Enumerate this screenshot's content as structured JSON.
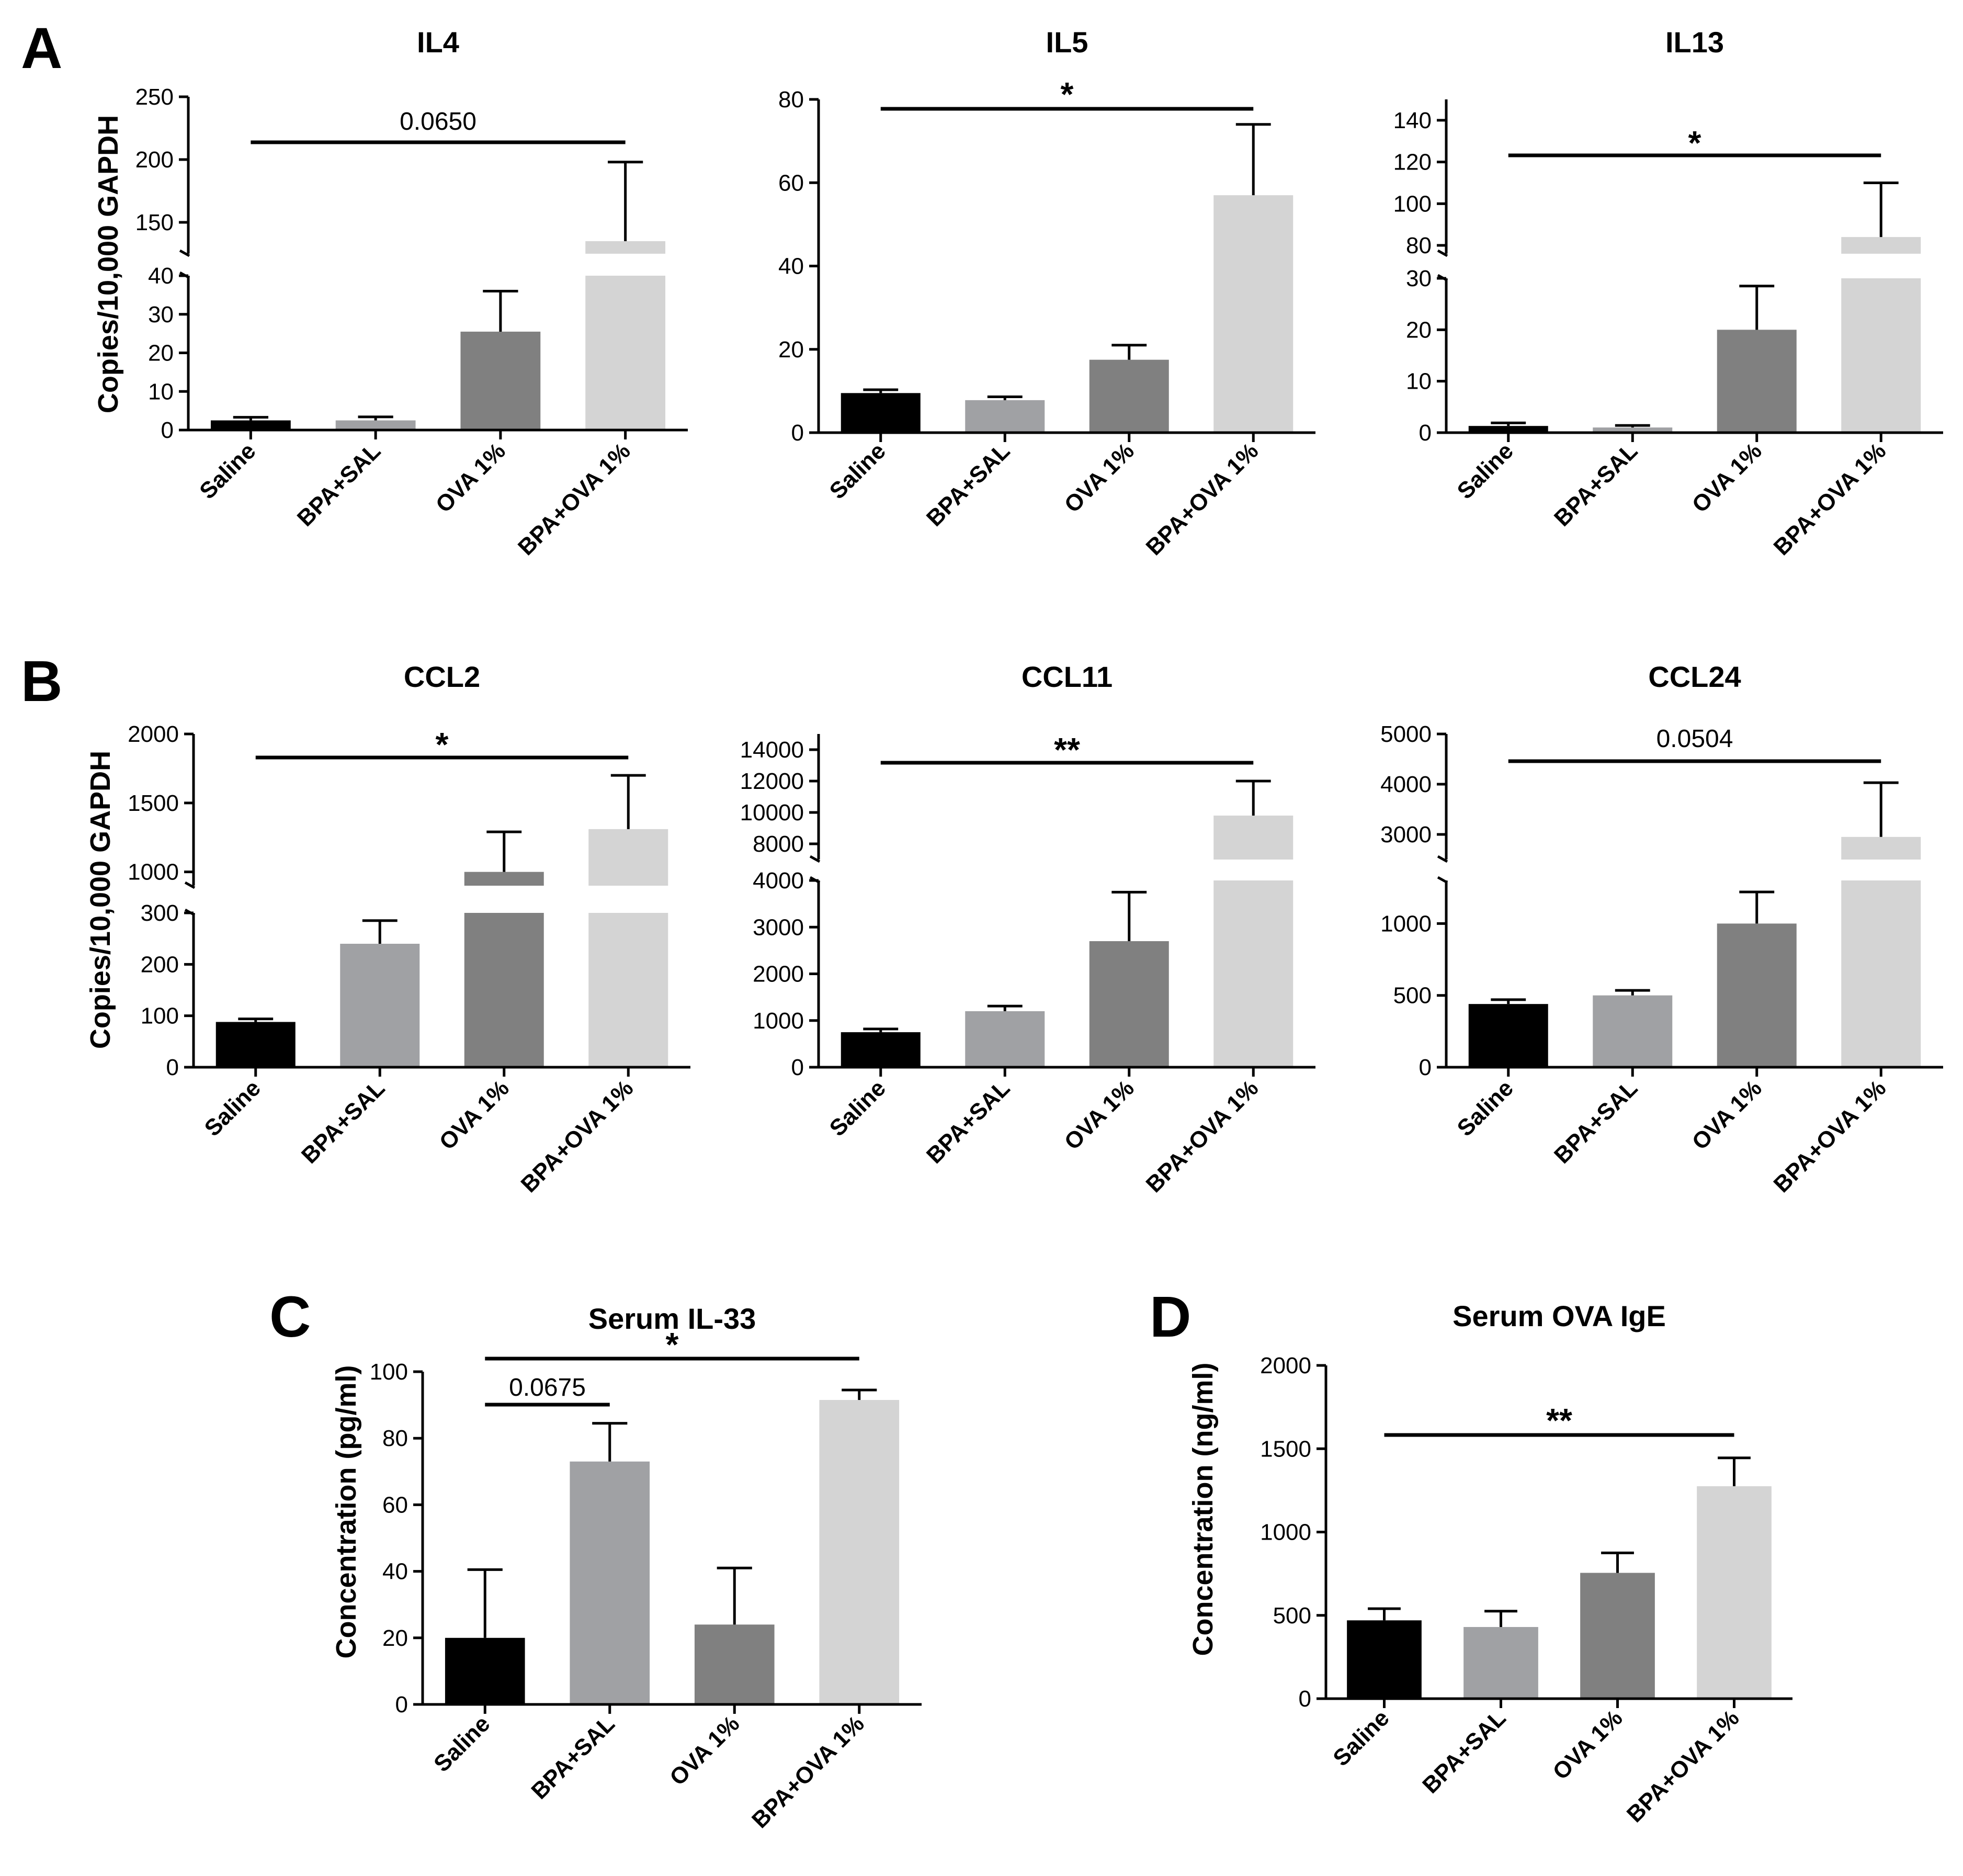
{
  "figure": {
    "panels": [
      {
        "letter": "A"
      },
      {
        "letter": "B"
      },
      {
        "letter": "C"
      },
      {
        "letter": "D"
      }
    ]
  },
  "colors": {
    "saline": "#000000",
    "bpa_sal": "#a0a1a4",
    "ova": "#808080",
    "bpa_ova": "#d4d4d4"
  },
  "chart_data": [
    {
      "id": "il4",
      "panel": "A",
      "type": "bar",
      "title": "IL4",
      "ylabel": "Copies/10,000 GAPDH",
      "categories": [
        "Saline",
        "BPA+SAL",
        "OVA 1%",
        "BPA+OVA 1%"
      ],
      "values": [
        2.5,
        2.5,
        25.5,
        135
      ],
      "errors": [
        0.8,
        0.9,
        10.5,
        63
      ],
      "broken_axis": {
        "lower": [
          0,
          40
        ],
        "upper": [
          125,
          250
        ]
      },
      "yticks_lower": [
        "0",
        "10",
        "20",
        "30",
        "40"
      ],
      "yticks_upper": [
        "150",
        "200",
        "250"
      ],
      "significance": [
        {
          "from": 0,
          "to": 3,
          "label": "0.0650"
        }
      ]
    },
    {
      "id": "il5",
      "panel": "A",
      "type": "bar",
      "title": "IL5",
      "ylabel": "",
      "categories": [
        "Saline",
        "BPA+SAL",
        "OVA 1%",
        "BPA+OVA 1%"
      ],
      "values": [
        9.5,
        7.8,
        17.5,
        57
      ],
      "errors": [
        0.8,
        0.8,
        3.5,
        17
      ],
      "ylim": [
        0,
        80
      ],
      "yticks": [
        "0",
        "20",
        "40",
        "60",
        "80"
      ],
      "significance": [
        {
          "from": 0,
          "to": 3,
          "label": "*"
        }
      ]
    },
    {
      "id": "il13",
      "panel": "A",
      "type": "bar",
      "title": "IL13",
      "ylabel": "",
      "categories": [
        "Saline",
        "BPA+SAL",
        "OVA 1%",
        "BPA+OVA 1%"
      ],
      "values": [
        1.3,
        1.0,
        20,
        84
      ],
      "errors": [
        0.6,
        0.4,
        8.5,
        26
      ],
      "broken_axis": {
        "lower": [
          0,
          30
        ],
        "upper": [
          76,
          150
        ]
      },
      "yticks_lower": [
        "0",
        "10",
        "20",
        "30"
      ],
      "yticks_upper": [
        "80",
        "100",
        "120",
        "140"
      ],
      "significance": [
        {
          "from": 0,
          "to": 3,
          "label": "*"
        }
      ]
    },
    {
      "id": "ccl2",
      "panel": "B",
      "type": "bar",
      "title": "CCL2",
      "ylabel": "Copies/10,000 GAPDH",
      "categories": [
        "Saline",
        "BPA+SAL",
        "OVA 1%",
        "BPA+OVA 1%"
      ],
      "values": [
        88,
        240,
        1000,
        1310
      ],
      "errors": [
        6,
        45,
        290,
        390
      ],
      "broken_axis": {
        "lower": [
          0,
          300
        ],
        "upper": [
          900,
          2000
        ]
      },
      "yticks_lower": [
        "0",
        "100",
        "200",
        "300"
      ],
      "yticks_upper": [
        "1000",
        "1500",
        "2000"
      ],
      "significance": [
        {
          "from": 0,
          "to": 3,
          "label": "*"
        }
      ]
    },
    {
      "id": "ccl11",
      "panel": "B",
      "type": "bar",
      "title": "CCL11",
      "ylabel": "",
      "categories": [
        "Saline",
        "BPA+SAL",
        "OVA 1%",
        "BPA+OVA 1%"
      ],
      "values": [
        750,
        1200,
        2700,
        9800
      ],
      "errors": [
        70,
        110,
        1050,
        2200
      ],
      "broken_axis": {
        "lower": [
          0,
          4000
        ],
        "upper": [
          7000,
          15000
        ]
      },
      "yticks_lower": [
        "0",
        "1000",
        "2000",
        "3000",
        "4000"
      ],
      "yticks_upper": [
        "8000",
        "10000",
        "12000",
        "14000"
      ],
      "significance": [
        {
          "from": 0,
          "to": 3,
          "label": "**"
        }
      ]
    },
    {
      "id": "ccl24",
      "panel": "B",
      "type": "bar",
      "title": "CCL24",
      "ylabel": "",
      "categories": [
        "Saline",
        "BPA+SAL",
        "OVA 1%",
        "BPA+OVA 1%"
      ],
      "values": [
        440,
        500,
        1000,
        2950
      ],
      "errors": [
        30,
        35,
        220,
        1080
      ],
      "broken_axis": {
        "lower": [
          0,
          1300
        ],
        "upper": [
          2500,
          5000
        ]
      },
      "yticks_lower": [
        "0",
        "500",
        "1000"
      ],
      "yticks_upper": [
        "3000",
        "4000",
        "5000"
      ],
      "significance": [
        {
          "from": 0,
          "to": 3,
          "label": "0.0504"
        }
      ]
    },
    {
      "id": "il33",
      "panel": "C",
      "type": "bar",
      "title": "Serum IL-33",
      "ylabel": "Concentration (pg/ml)",
      "categories": [
        "Saline",
        "BPA+SAL",
        "OVA 1%",
        "BPA+OVA 1%"
      ],
      "values": [
        20,
        73,
        24,
        91.5
      ],
      "errors": [
        20.5,
        11.5,
        17,
        3
      ],
      "ylim": [
        0,
        100
      ],
      "yticks": [
        "0",
        "20",
        "40",
        "60",
        "80",
        "100"
      ],
      "significance": [
        {
          "from": 0,
          "to": 1,
          "label": "0.0675"
        },
        {
          "from": 0,
          "to": 3,
          "label": "*"
        }
      ]
    },
    {
      "id": "ova_ige",
      "panel": "D",
      "type": "bar",
      "title": "Serum OVA IgE",
      "ylabel": "Concentration (ng/ml)",
      "categories": [
        "Saline",
        "BPA+SAL",
        "OVA 1%",
        "BPA+OVA 1%"
      ],
      "values": [
        470,
        430,
        755,
        1275
      ],
      "errors": [
        70,
        95,
        120,
        170
      ],
      "ylim": [
        0,
        2000
      ],
      "yticks": [
        "0",
        "500",
        "1000",
        "1500",
        "2000"
      ],
      "significance": [
        {
          "from": 0,
          "to": 3,
          "label": "**"
        }
      ]
    }
  ]
}
